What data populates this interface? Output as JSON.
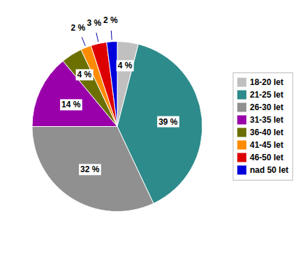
{
  "chart_data": {
    "type": "pie",
    "categories": [
      "18-20 let",
      "21-25 let",
      "26-30 let",
      "31-35 let",
      "36-40 let",
      "41-45 let",
      "46-50 let",
      "nad 50 let"
    ],
    "values": [
      4,
      39,
      32,
      14,
      4,
      2,
      3,
      2
    ],
    "value_labels": [
      "4 %",
      "39 %",
      "32 %",
      "14 %",
      "4 %",
      "2 %",
      "3 %",
      "2 %"
    ],
    "colors": [
      "#c0c0c0",
      "#2e8b8b",
      "#909090",
      "#9900aa",
      "#6b7000",
      "#ff8c00",
      "#dd0000",
      "#0000dd"
    ],
    "data_labels": true,
    "legend": "right"
  }
}
